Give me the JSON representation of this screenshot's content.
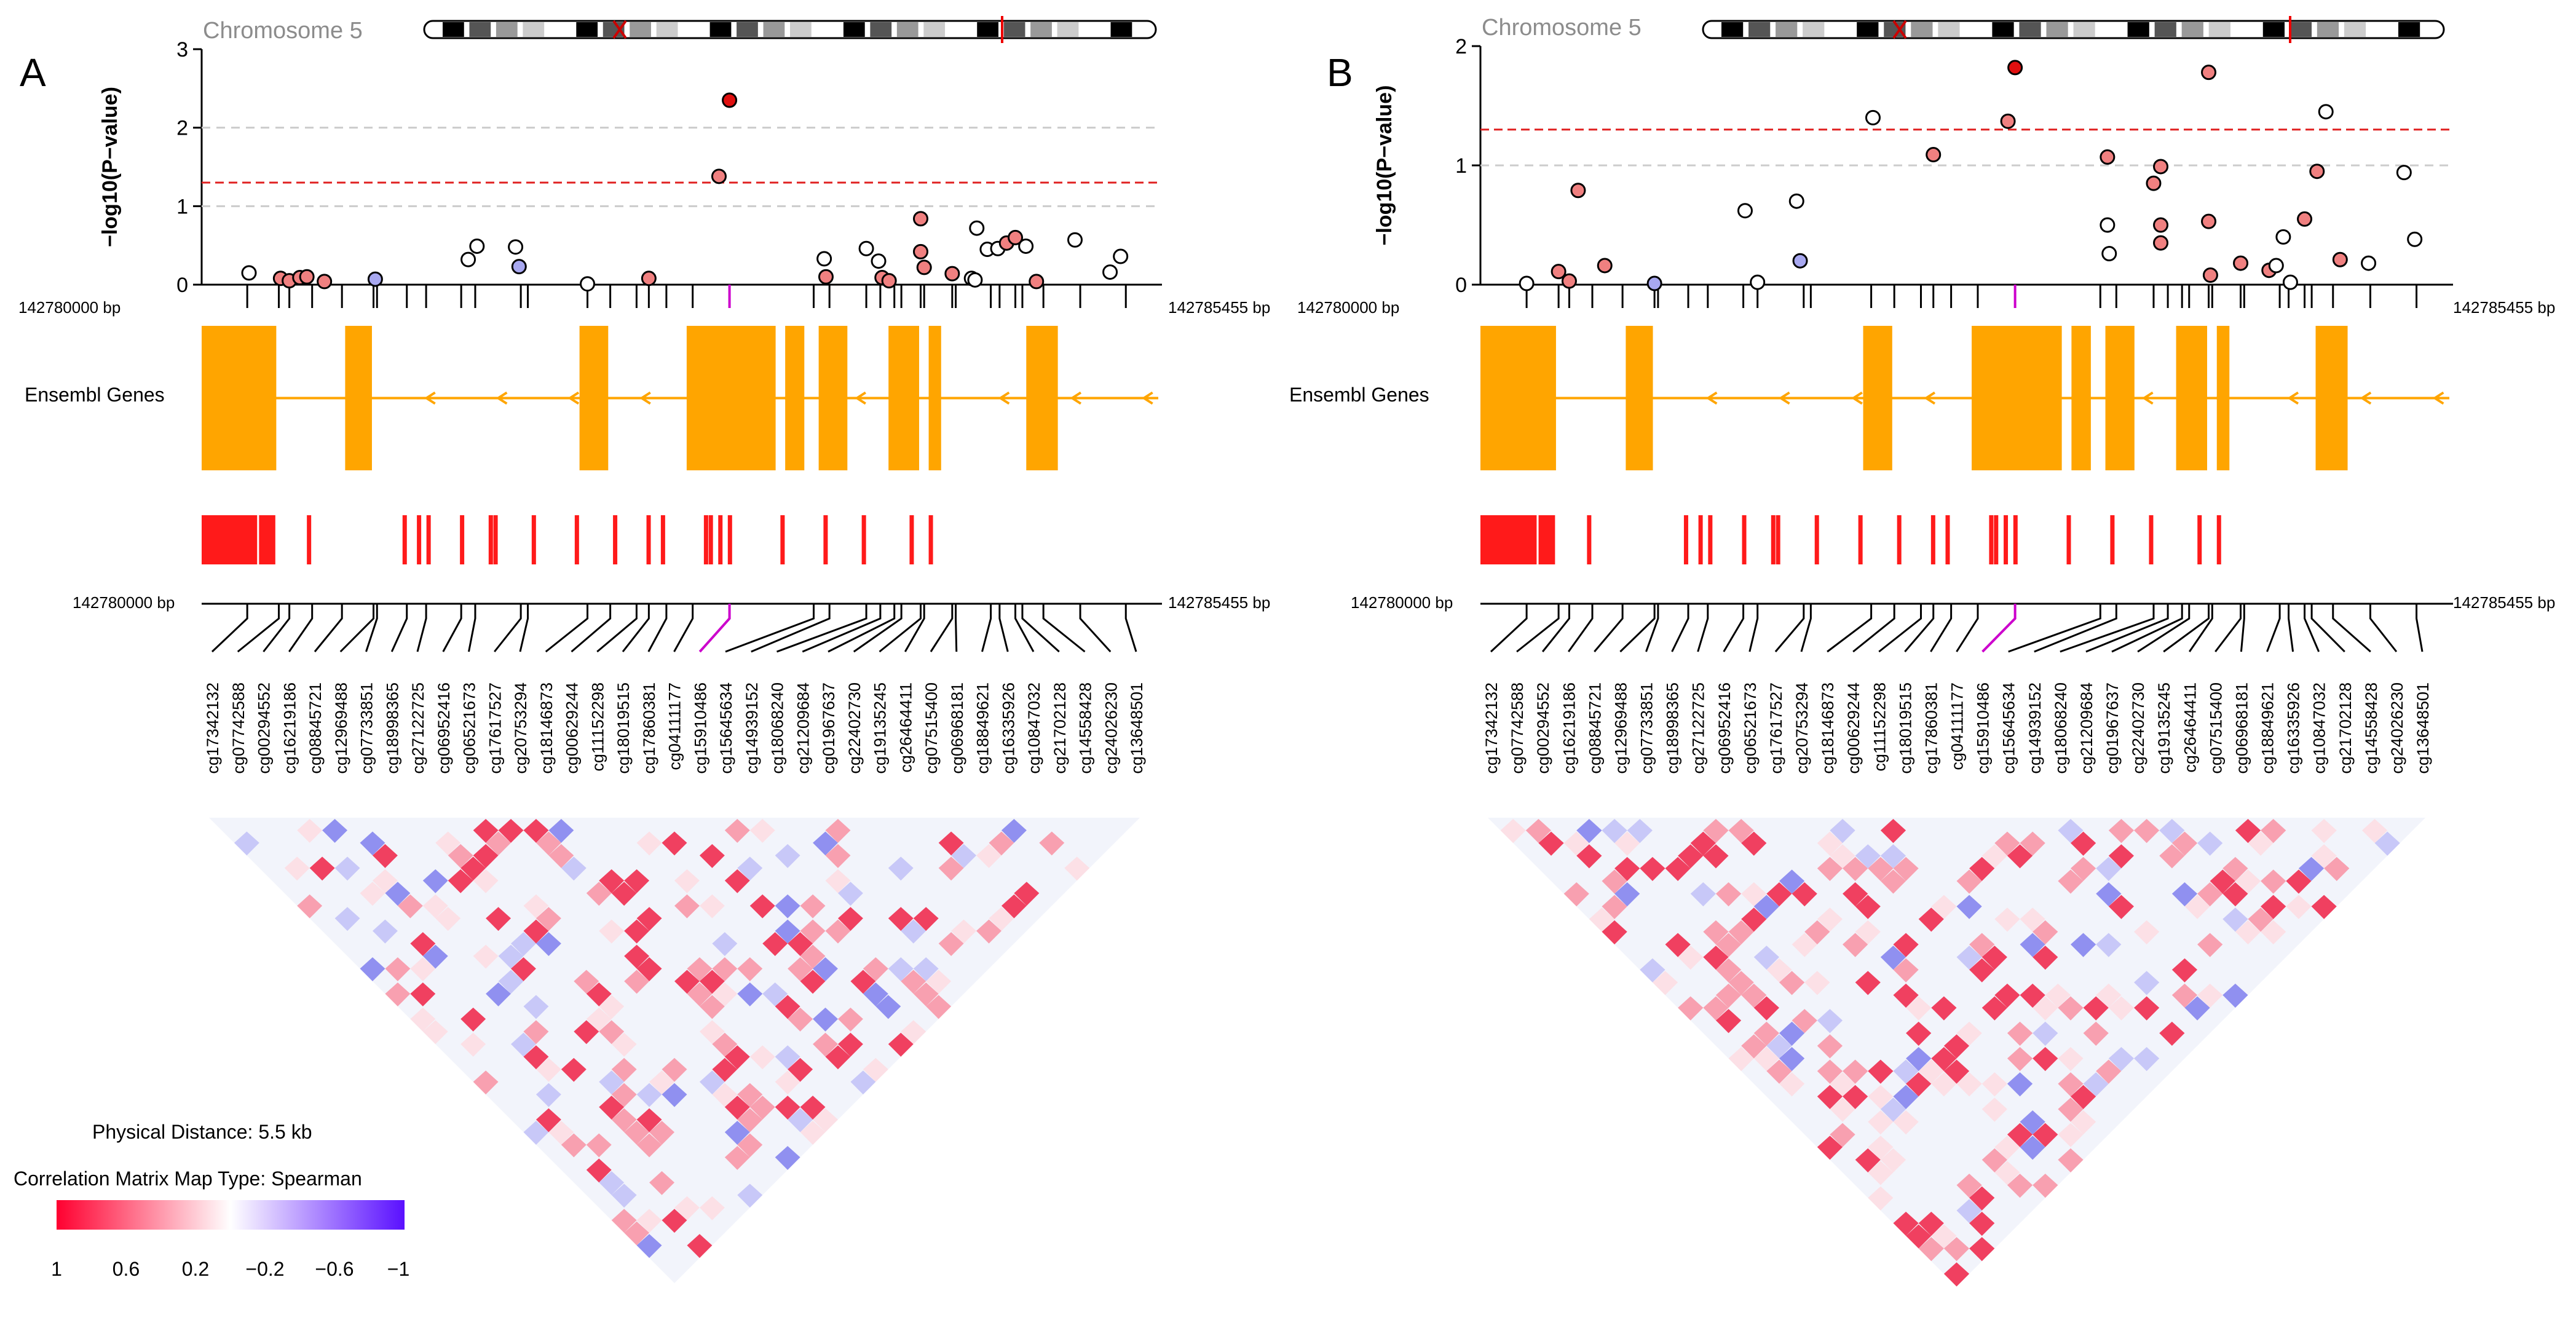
{
  "panels": [
    {
      "letter": "A",
      "chromosome_label": "Chromosome 5"
    },
    {
      "letter": "B",
      "chromosome_label": "Chromosome 5"
    }
  ],
  "start_bp_label": "142780000 bp",
  "end_bp_label": "142785455 bp",
  "track_label": "Ensembl Genes",
  "legend": {
    "distance": "Physical Distance: 5.5 kb",
    "map_type": "Correlation Matrix Map Type: Spearman",
    "tick_labels": [
      "1",
      "0.6",
      "0.2",
      "−0.2",
      "−0.6",
      "−1"
    ],
    "color_high": "#ff0030",
    "color_mid": "#ffffff",
    "color_low": "#5a10ff"
  },
  "colors": {
    "gene": "#ffa500",
    "cpg": "#ff1a1a",
    "threshold": "#e02020",
    "grid": "#cccccc",
    "highlight": "#cc00cc"
  },
  "chart_data": [
    {
      "type": "scatter",
      "panel": "A",
      "ylabel": "−log10(P−value)",
      "ylim": [
        0,
        3
      ],
      "yticks": [
        0,
        1,
        2,
        3
      ],
      "xlim": [
        142780000,
        142785455
      ],
      "threshold": 1.3,
      "gridlines": [
        1,
        2
      ],
      "probes": [
        "cg17342132",
        "cg07742588",
        "cg00294552",
        "cg16219186",
        "cg08845721",
        "cg12969488",
        "cg07733851",
        "cg18998365",
        "cg27122725",
        "cg06952416",
        "cg06521673",
        "cg17617527",
        "cg20753294",
        "cg18146873",
        "cg00629244",
        "cg11152298",
        "cg18019515",
        "cg17860381",
        "cg04111177",
        "cg15910486",
        "cg15645634",
        "cg14939152",
        "cg18068240",
        "cg21209684",
        "cg01967637",
        "cg22402730",
        "cg19135245",
        "cg26464411",
        "cg07515400",
        "cg06968181",
        "cg18849621",
        "cg16335926",
        "cg10847032",
        "cg21702128",
        "cg14558428",
        "cg24026230",
        "cg13648501"
      ],
      "probe_positions": [
        142780260,
        142780440,
        142780500,
        142780630,
        142780800,
        142780980,
        142781000,
        142781170,
        142781280,
        142781480,
        142781560,
        142781820,
        142781860,
        142782200,
        142782330,
        142782480,
        142782550,
        142782650,
        142782800,
        142783010,
        142783490,
        142783580,
        142783790,
        142783870,
        142783950,
        142783990,
        142784100,
        142784120,
        142784280,
        142784300,
        142784500,
        142784550,
        142784640,
        142784680,
        142784800,
        142785010,
        142785270
      ],
      "points": [
        {
          "x": 142780270,
          "y": 0.15,
          "c": "white"
        },
        {
          "x": 142780450,
          "y": 0.08,
          "c": "pink"
        },
        {
          "x": 142780500,
          "y": 0.05,
          "c": "pink"
        },
        {
          "x": 142780560,
          "y": 0.09,
          "c": "pink"
        },
        {
          "x": 142780600,
          "y": 0.1,
          "c": "pink"
        },
        {
          "x": 142780700,
          "y": 0.04,
          "c": "pink"
        },
        {
          "x": 142780990,
          "y": 0.07,
          "c": "lavender"
        },
        {
          "x": 142781520,
          "y": 0.32,
          "c": "white"
        },
        {
          "x": 142781570,
          "y": 0.49,
          "c": "white"
        },
        {
          "x": 142781790,
          "y": 0.48,
          "c": "white"
        },
        {
          "x": 142781810,
          "y": 0.23,
          "c": "lavender"
        },
        {
          "x": 142782200,
          "y": 0.01,
          "c": "white"
        },
        {
          "x": 142782550,
          "y": 0.08,
          "c": "pink"
        },
        {
          "x": 142782950,
          "y": 1.38,
          "c": "pink"
        },
        {
          "x": 142783010,
          "y": 2.35,
          "c": "red"
        },
        {
          "x": 142783550,
          "y": 0.33,
          "c": "white"
        },
        {
          "x": 142783560,
          "y": 0.1,
          "c": "pink"
        },
        {
          "x": 142783790,
          "y": 0.46,
          "c": "white"
        },
        {
          "x": 142783860,
          "y": 0.3,
          "c": "white"
        },
        {
          "x": 142783880,
          "y": 0.09,
          "c": "pink"
        },
        {
          "x": 142783920,
          "y": 0.05,
          "c": "pink"
        },
        {
          "x": 142784100,
          "y": 0.84,
          "c": "pink"
        },
        {
          "x": 142784100,
          "y": 0.42,
          "c": "pink"
        },
        {
          "x": 142784120,
          "y": 0.22,
          "c": "pink"
        },
        {
          "x": 142784280,
          "y": 0.14,
          "c": "pink"
        },
        {
          "x": 142784390,
          "y": 0.08,
          "c": "white"
        },
        {
          "x": 142784410,
          "y": 0.06,
          "c": "white"
        },
        {
          "x": 142784420,
          "y": 0.72,
          "c": "white"
        },
        {
          "x": 142784480,
          "y": 0.45,
          "c": "white"
        },
        {
          "x": 142784540,
          "y": 0.46,
          "c": "white"
        },
        {
          "x": 142784590,
          "y": 0.53,
          "c": "pink"
        },
        {
          "x": 142784640,
          "y": 0.6,
          "c": "pink"
        },
        {
          "x": 142784700,
          "y": 0.49,
          "c": "white"
        },
        {
          "x": 142784760,
          "y": 0.04,
          "c": "pink"
        },
        {
          "x": 142784980,
          "y": 0.57,
          "c": "white"
        },
        {
          "x": 142785180,
          "y": 0.16,
          "c": "white"
        },
        {
          "x": 142785240,
          "y": 0.36,
          "c": "white"
        }
      ]
    },
    {
      "type": "scatter",
      "panel": "B",
      "ylabel": "−log10(P−value)",
      "ylim": [
        0,
        2
      ],
      "yticks": [
        0,
        1,
        2
      ],
      "xlim": [
        142780000,
        142785455
      ],
      "threshold": 1.3,
      "gridlines": [
        1
      ],
      "probes": [
        "cg17342132",
        "cg07742588",
        "cg00294552",
        "cg16219186",
        "cg08845721",
        "cg12969488",
        "cg07733851",
        "cg18998365",
        "cg27122725",
        "cg06952416",
        "cg06521673",
        "cg17617527",
        "cg20753294",
        "cg18146873",
        "cg00629244",
        "cg11152298",
        "cg18019515",
        "cg17860381",
        "cg04111177",
        "cg15910486",
        "cg15645634",
        "cg14939152",
        "cg18068240",
        "cg21209684",
        "cg01967637",
        "cg22402730",
        "cg19135245",
        "cg26464411",
        "cg07515400",
        "cg06968181",
        "cg18849621",
        "cg16335926",
        "cg10847032",
        "cg21702128",
        "cg14558428",
        "cg24026230",
        "cg13648501"
      ],
      "probe_positions": [
        142780260,
        142780440,
        142780500,
        142780630,
        142780800,
        142780980,
        142781000,
        142781170,
        142781280,
        142781480,
        142781560,
        142781820,
        142781860,
        142782200,
        142782330,
        142782480,
        142782550,
        142782650,
        142782800,
        142783010,
        142783490,
        142783580,
        142783790,
        142783870,
        142783950,
        142783990,
        142784100,
        142784120,
        142784280,
        142784300,
        142784500,
        142784550,
        142784640,
        142784680,
        142784800,
        142785010,
        142785270
      ],
      "points": [
        {
          "x": 142780260,
          "y": 0.01,
          "c": "white"
        },
        {
          "x": 142780440,
          "y": 0.11,
          "c": "pink"
        },
        {
          "x": 142780500,
          "y": 0.03,
          "c": "pink"
        },
        {
          "x": 142780550,
          "y": 0.79,
          "c": "pink"
        },
        {
          "x": 142780700,
          "y": 0.16,
          "c": "pink"
        },
        {
          "x": 142780980,
          "y": 0.01,
          "c": "lavender"
        },
        {
          "x": 142781490,
          "y": 0.62,
          "c": "white"
        },
        {
          "x": 142781560,
          "y": 0.02,
          "c": "white"
        },
        {
          "x": 142781780,
          "y": 0.7,
          "c": "white"
        },
        {
          "x": 142781800,
          "y": 0.2,
          "c": "lavender"
        },
        {
          "x": 142782210,
          "y": 1.4,
          "c": "white"
        },
        {
          "x": 142782550,
          "y": 1.09,
          "c": "pink"
        },
        {
          "x": 142782970,
          "y": 1.37,
          "c": "pink"
        },
        {
          "x": 142783010,
          "y": 1.82,
          "c": "red"
        },
        {
          "x": 142783530,
          "y": 1.07,
          "c": "pink"
        },
        {
          "x": 142783530,
          "y": 0.5,
          "c": "white"
        },
        {
          "x": 142783540,
          "y": 0.26,
          "c": "white"
        },
        {
          "x": 142783790,
          "y": 0.85,
          "c": "pink"
        },
        {
          "x": 142783830,
          "y": 0.99,
          "c": "pink"
        },
        {
          "x": 142783830,
          "y": 0.5,
          "c": "pink"
        },
        {
          "x": 142783830,
          "y": 0.35,
          "c": "pink"
        },
        {
          "x": 142784100,
          "y": 1.78,
          "c": "pink"
        },
        {
          "x": 142784100,
          "y": 0.53,
          "c": "pink"
        },
        {
          "x": 142784110,
          "y": 0.08,
          "c": "pink"
        },
        {
          "x": 142784280,
          "y": 0.18,
          "c": "pink"
        },
        {
          "x": 142784440,
          "y": 0.12,
          "c": "pink"
        },
        {
          "x": 142784480,
          "y": 0.16,
          "c": "white"
        },
        {
          "x": 142784520,
          "y": 0.4,
          "c": "white"
        },
        {
          "x": 142784560,
          "y": 0.02,
          "c": "white"
        },
        {
          "x": 142784640,
          "y": 0.55,
          "c": "pink"
        },
        {
          "x": 142784710,
          "y": 0.95,
          "c": "pink"
        },
        {
          "x": 142784760,
          "y": 1.45,
          "c": "white"
        },
        {
          "x": 142784840,
          "y": 0.21,
          "c": "pink"
        },
        {
          "x": 142785000,
          "y": 0.18,
          "c": "white"
        },
        {
          "x": 142785200,
          "y": 0.94,
          "c": "white"
        },
        {
          "x": 142785260,
          "y": 0.38,
          "c": "white"
        }
      ]
    }
  ]
}
